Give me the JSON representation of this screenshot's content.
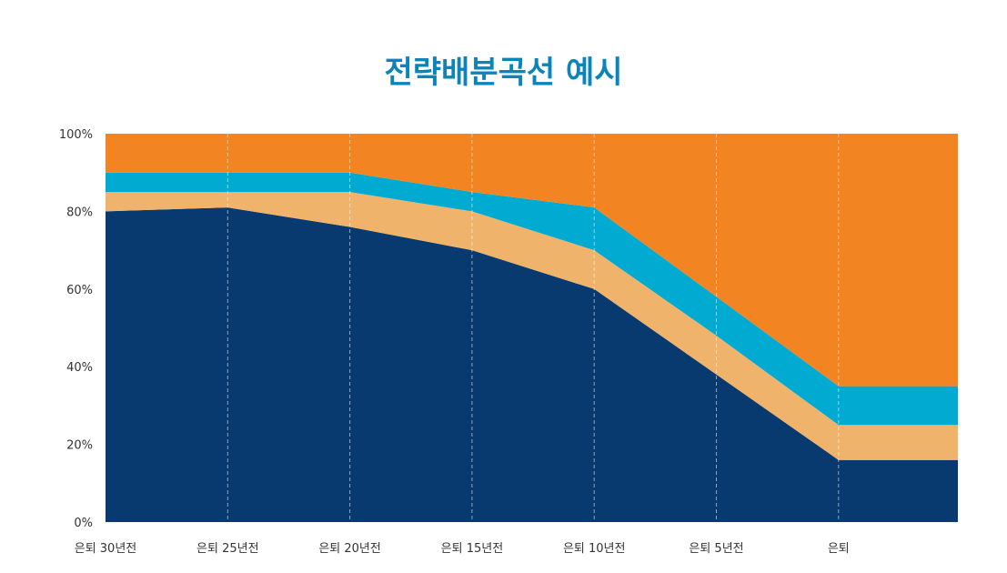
{
  "chart_data": {
    "type": "area",
    "stacked": true,
    "title": "전략배분곡선 예시",
    "xlabel": "",
    "ylabel": "",
    "x": [
      0,
      1,
      2,
      3,
      4,
      5,
      6,
      7
    ],
    "x_tick_labels": [
      "은퇴 30년전",
      "은퇴 25년전",
      "은퇴 20년전",
      "은퇴 15년전",
      "은퇴 10년전",
      "은퇴 5년전",
      "은퇴"
    ],
    "y_tick_labels": [
      "0%",
      "20%",
      "40%",
      "60%",
      "80%",
      "100%"
    ],
    "ylim": [
      0,
      100
    ],
    "grid": "vertical-dashed",
    "legend": "none",
    "series": [
      {
        "color": "#083a70",
        "values": [
          80,
          81,
          76,
          70,
          60,
          38,
          16,
          16
        ]
      },
      {
        "color": "#f0b36b",
        "values": [
          5,
          4,
          9,
          10,
          10,
          10,
          9,
          9
        ]
      },
      {
        "color": "#00aad0",
        "values": [
          5,
          5,
          5,
          5,
          11,
          10,
          10,
          10
        ]
      },
      {
        "color": "#f28422",
        "values": [
          10,
          10,
          10,
          15,
          19,
          42,
          65,
          65
        ]
      }
    ]
  }
}
